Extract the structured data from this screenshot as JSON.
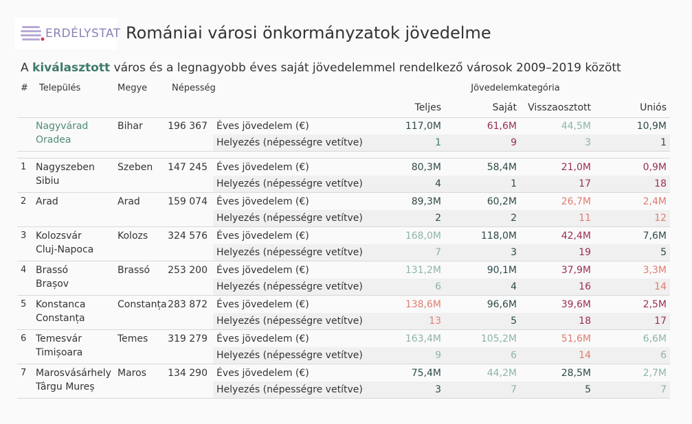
{
  "logo": "ERDÉLYSTAT",
  "title": "Romániai városi önkormányzatok jövedelme",
  "subtitle": [
    "A ",
    "kiválasztott",
    " város és a legnagyobb éves saját jövedelemmel rendelkező városok 2009–2019 között"
  ],
  "table": {
    "headers": [
      "#",
      "Település",
      "Megye",
      "Népesség",
      "Jövedelemkategória"
    ],
    "categories": [
      "Teljes",
      "Saját",
      "Visszaosztott",
      "Uniós"
    ],
    "metrics": [
      "Éves jövedelem (€)",
      "Helyezés (népességre vetítve)"
    ],
    "selected": {
      "city": [
        "Nagyvárad",
        "Oradea"
      ],
      "county": "Bihar",
      "population": "196 367",
      "income": [
        {
          "text": "117,0M",
          "color": "#2e4848"
        },
        {
          "text": "61,6M",
          "color": "#9a2d4f"
        },
        {
          "text": "44,5M",
          "color": "#8cb3aa"
        },
        {
          "text": "10,9M",
          "color": "#2e4848"
        }
      ],
      "ranks": [
        {
          "text": 1,
          "color": "#3f7a6c"
        },
        {
          "text": 9,
          "color": "#9a2d4f"
        },
        {
          "text": 3,
          "color": "#8cb3aa"
        },
        {
          "text": 1,
          "color": "#2e4848"
        }
      ]
    },
    "rows": [
      {
        "rank": 1,
        "city": [
          "Nagyszeben",
          "Sibiu"
        ],
        "county": "Szeben",
        "population": "147 245",
        "income": [
          {
            "text": "80,3M",
            "color": "#2e4848"
          },
          {
            "text": "58,4M",
            "color": "#2e4848"
          },
          {
            "text": "21,0M",
            "color": "#9a2d4f"
          },
          {
            "text": "0,9M",
            "color": "#9a2d4f"
          }
        ],
        "ranks": [
          {
            "text": 4,
            "color": "#2e4848"
          },
          {
            "text": 1,
            "color": "#2e4848"
          },
          {
            "text": 17,
            "color": "#9a2d4f"
          },
          {
            "text": 18,
            "color": "#9a2d4f"
          }
        ]
      },
      {
        "rank": 2,
        "city": [
          "Arad"
        ],
        "county": "Arad",
        "population": "159 074",
        "income": [
          {
            "text": "89,3M",
            "color": "#2e4848"
          },
          {
            "text": "60,2M",
            "color": "#2e4848"
          },
          {
            "text": "26,7M",
            "color": "#e07b6e"
          },
          {
            "text": "2,4M",
            "color": "#e07b6e"
          }
        ],
        "ranks": [
          {
            "text": 2,
            "color": "#2e4848"
          },
          {
            "text": 2,
            "color": "#2e4848"
          },
          {
            "text": 11,
            "color": "#e07b6e"
          },
          {
            "text": 12,
            "color": "#e07b6e"
          }
        ]
      },
      {
        "rank": 3,
        "city": [
          "Kolozsvár",
          "Cluj-Napoca"
        ],
        "county": "Kolozs",
        "population": "324 576",
        "income": [
          {
            "text": "168,0M",
            "color": "#8cb3aa"
          },
          {
            "text": "118,0M",
            "color": "#2e4848"
          },
          {
            "text": "42,4M",
            "color": "#9a2d4f"
          },
          {
            "text": "7,6M",
            "color": "#2e4848"
          }
        ],
        "ranks": [
          {
            "text": 7,
            "color": "#8cb3aa"
          },
          {
            "text": 3,
            "color": "#2e4848"
          },
          {
            "text": 19,
            "color": "#9a2d4f"
          },
          {
            "text": 5,
            "color": "#2e4848"
          }
        ]
      },
      {
        "rank": 4,
        "city": [
          "Brassó",
          "Brașov"
        ],
        "county": "Brassó",
        "population": "253 200",
        "income": [
          {
            "text": "131,2M",
            "color": "#8cb3aa"
          },
          {
            "text": "90,1M",
            "color": "#2e4848"
          },
          {
            "text": "37,9M",
            "color": "#9a2d4f"
          },
          {
            "text": "3,3M",
            "color": "#e07b6e"
          }
        ],
        "ranks": [
          {
            "text": 6,
            "color": "#8cb3aa"
          },
          {
            "text": 4,
            "color": "#2e4848"
          },
          {
            "text": 16,
            "color": "#9a2d4f"
          },
          {
            "text": 14,
            "color": "#e07b6e"
          }
        ]
      },
      {
        "rank": 5,
        "city": [
          "Konstanca",
          "Constanța"
        ],
        "county": "Constanța",
        "population": "283 872",
        "income": [
          {
            "text": "138,6M",
            "color": "#e07b6e"
          },
          {
            "text": "96,6M",
            "color": "#2e4848"
          },
          {
            "text": "39,6M",
            "color": "#9a2d4f"
          },
          {
            "text": "2,5M",
            "color": "#9a2d4f"
          }
        ],
        "ranks": [
          {
            "text": 13,
            "color": "#e07b6e"
          },
          {
            "text": 5,
            "color": "#2e4848"
          },
          {
            "text": 18,
            "color": "#9a2d4f"
          },
          {
            "text": 17,
            "color": "#9a2d4f"
          }
        ]
      },
      {
        "rank": 6,
        "city": [
          "Temesvár",
          "Timișoara"
        ],
        "county": "Temes",
        "population": "319 279",
        "income": [
          {
            "text": "163,4M",
            "color": "#8cb3aa"
          },
          {
            "text": "105,2M",
            "color": "#8cb3aa"
          },
          {
            "text": "51,6M",
            "color": "#e07b6e"
          },
          {
            "text": "6,6M",
            "color": "#8cb3aa"
          }
        ],
        "ranks": [
          {
            "text": 9,
            "color": "#8cb3aa"
          },
          {
            "text": 6,
            "color": "#8cb3aa"
          },
          {
            "text": 14,
            "color": "#e07b6e"
          },
          {
            "text": 6,
            "color": "#8cb3aa"
          }
        ]
      },
      {
        "rank": 7,
        "city": [
          "Marosvásárhely",
          "Târgu Mureș"
        ],
        "county": "Maros",
        "population": "134 290",
        "income": [
          {
            "text": "75,4M",
            "color": "#2e4848"
          },
          {
            "text": "44,2M",
            "color": "#8cb3aa"
          },
          {
            "text": "28,5M",
            "color": "#2e4848"
          },
          {
            "text": "2,7M",
            "color": "#8cb3aa"
          }
        ],
        "ranks": [
          {
            "text": 3,
            "color": "#2e4848"
          },
          {
            "text": 7,
            "color": "#8cb3aa"
          },
          {
            "text": 5,
            "color": "#2e4848"
          },
          {
            "text": 7,
            "color": "#8cb3aa"
          }
        ]
      }
    ]
  }
}
